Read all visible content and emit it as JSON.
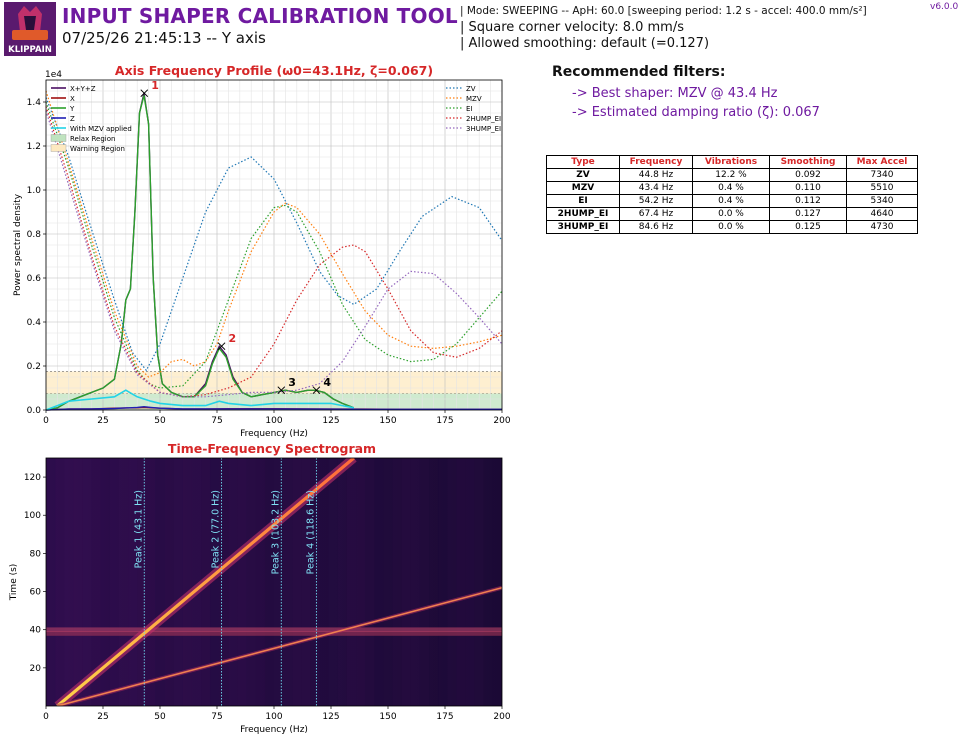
{
  "header": {
    "title": "INPUT SHAPER CALIBRATION TOOL",
    "subtitle": "07/25/26 21:45:13 -- Y axis",
    "logo_text": "KLIPPAIN",
    "version": "v6.0.0",
    "mode_line": "| Mode: SWEEPING -- ApH: 60.0 [sweeping period: 1.2 s - accel: 400.0 mm/s²]",
    "scv_line": "| Square corner velocity: 8.0 mm/s",
    "smoothing_line": "| Allowed smoothing: default (=0.127)"
  },
  "recommendations": {
    "title": "Recommended filters:",
    "best": "-> Best shaper: MZV @ 43.4 Hz",
    "damping": "-> Estimated damping ratio (ζ): 0.067"
  },
  "filters_table": {
    "headers": [
      "Type",
      "Frequency",
      "Vibrations",
      "Smoothing",
      "Max Accel"
    ],
    "rows": [
      [
        "ZV",
        "44.8 Hz",
        "12.2 %",
        "0.092",
        "7340"
      ],
      [
        "MZV",
        "43.4 Hz",
        "0.4 %",
        "0.110",
        "5510"
      ],
      [
        "EI",
        "54.2 Hz",
        "0.4 %",
        "0.112",
        "5340"
      ],
      [
        "2HUMP_EI",
        "67.4 Hz",
        "0.0 %",
        "0.127",
        "4640"
      ],
      [
        "3HUMP_EI",
        "84.6 Hz",
        "0.0 %",
        "0.125",
        "4730"
      ]
    ]
  },
  "chart_data": [
    {
      "type": "line",
      "title": "Axis Frequency Profile (ω0=43.1Hz, ζ=0.067)",
      "xlabel": "Frequency (Hz)",
      "ylabel": "Power spectral density",
      "y_multiplier": "1e4",
      "xlim": [
        0,
        200
      ],
      "ylim": [
        0,
        1.5
      ],
      "xticks": [
        0,
        25,
        50,
        75,
        100,
        125,
        150,
        175,
        200
      ],
      "yticks": [
        0.0,
        0.2,
        0.4,
        0.6,
        0.8,
        1.0,
        1.2,
        1.4
      ],
      "ytick_labels": [
        "0.0",
        "0.2",
        "0.4",
        "0.6",
        "0.8",
        "1.0",
        "1.2",
        "1.4"
      ],
      "grid": true,
      "regions": [
        {
          "name": "Relax Region",
          "from": 0,
          "to": 0.075,
          "color": "#bfe3bf"
        },
        {
          "name": "Warning Region",
          "from": 0.075,
          "to": 0.175,
          "color": "#fde9c0"
        }
      ],
      "series": [
        {
          "name": "X+Y+Z",
          "color": "#4b0f63",
          "x": [
            0,
            5,
            10,
            15,
            20,
            25,
            30,
            33,
            35,
            37,
            39,
            41,
            43,
            45,
            47,
            49,
            51,
            55,
            60,
            65,
            70,
            73,
            76,
            79,
            82,
            86,
            90,
            95,
            100,
            105,
            110,
            115,
            118,
            122,
            126,
            130,
            135
          ],
          "y": [
            0.0,
            0.01,
            0.04,
            0.06,
            0.08,
            0.1,
            0.14,
            0.3,
            0.5,
            0.55,
            0.9,
            1.35,
            1.44,
            1.3,
            0.6,
            0.25,
            0.12,
            0.08,
            0.06,
            0.06,
            0.12,
            0.22,
            0.29,
            0.25,
            0.15,
            0.08,
            0.06,
            0.07,
            0.08,
            0.09,
            0.08,
            0.09,
            0.09,
            0.08,
            0.05,
            0.03,
            0.01
          ]
        },
        {
          "name": "X",
          "color": "#a01010",
          "x": [
            0,
            10,
            20,
            30,
            40,
            43,
            46,
            50,
            60,
            70,
            80,
            100,
            120,
            140,
            160,
            180,
            200
          ],
          "y": [
            0.0,
            0.005,
            0.005,
            0.008,
            0.01,
            0.012,
            0.01,
            0.008,
            0.005,
            0.005,
            0.006,
            0.006,
            0.005,
            0.004,
            0.003,
            0.003,
            0.003
          ]
        },
        {
          "name": "Y",
          "color": "#2ca02c",
          "x": [
            0,
            5,
            10,
            15,
            20,
            25,
            30,
            33,
            35,
            37,
            39,
            41,
            43,
            45,
            47,
            49,
            51,
            55,
            60,
            65,
            70,
            73,
            76,
            79,
            82,
            86,
            90,
            95,
            100,
            105,
            110,
            115,
            118,
            122,
            126,
            130,
            135
          ],
          "y": [
            0.0,
            0.01,
            0.04,
            0.06,
            0.08,
            0.1,
            0.14,
            0.3,
            0.5,
            0.55,
            0.9,
            1.35,
            1.43,
            1.3,
            0.6,
            0.25,
            0.12,
            0.08,
            0.06,
            0.06,
            0.11,
            0.21,
            0.28,
            0.24,
            0.14,
            0.08,
            0.06,
            0.07,
            0.08,
            0.09,
            0.08,
            0.09,
            0.09,
            0.08,
            0.05,
            0.03,
            0.01
          ]
        },
        {
          "name": "Z",
          "color": "#1f1fb4",
          "x": [
            0,
            10,
            20,
            30,
            40,
            43,
            46,
            50,
            60,
            70,
            80,
            100,
            120,
            140,
            160,
            180,
            200
          ],
          "y": [
            0.0,
            0.004,
            0.005,
            0.007,
            0.012,
            0.015,
            0.012,
            0.008,
            0.005,
            0.005,
            0.005,
            0.005,
            0.004,
            0.003,
            0.003,
            0.003,
            0.003
          ]
        },
        {
          "name": "With MZV applied",
          "color": "#22d3e6",
          "x": [
            0,
            5,
            10,
            20,
            30,
            35,
            40,
            43,
            46,
            50,
            60,
            70,
            76,
            80,
            90,
            100,
            110,
            118,
            125,
            130,
            135
          ],
          "y": [
            0.0,
            0.02,
            0.04,
            0.05,
            0.06,
            0.09,
            0.06,
            0.05,
            0.04,
            0.03,
            0.02,
            0.02,
            0.04,
            0.03,
            0.02,
            0.03,
            0.03,
            0.03,
            0.03,
            0.02,
            0.01
          ]
        },
        {
          "name": "ZV",
          "color": "#1f77b4",
          "dotted": true,
          "x": [
            0,
            10,
            20,
            30,
            38,
            44,
            50,
            60,
            70,
            80,
            90,
            100,
            110,
            120,
            128,
            135,
            145,
            155,
            165,
            178,
            190,
            200
          ],
          "y": [
            1.42,
            1.15,
            0.82,
            0.5,
            0.26,
            0.18,
            0.3,
            0.6,
            0.9,
            1.1,
            1.15,
            1.05,
            0.85,
            0.63,
            0.52,
            0.48,
            0.55,
            0.72,
            0.88,
            0.97,
            0.92,
            0.77
          ]
        },
        {
          "name": "MZV",
          "color": "#ff7f0e",
          "dotted": true,
          "x": [
            0,
            10,
            20,
            30,
            40,
            45,
            50,
            55,
            60,
            65,
            70,
            75,
            80,
            90,
            100,
            105,
            110,
            120,
            130,
            140,
            150,
            160,
            170,
            180,
            190,
            200
          ],
          "y": [
            1.45,
            1.12,
            0.78,
            0.45,
            0.2,
            0.15,
            0.17,
            0.22,
            0.23,
            0.2,
            0.22,
            0.3,
            0.45,
            0.72,
            0.9,
            0.94,
            0.92,
            0.8,
            0.62,
            0.45,
            0.34,
            0.29,
            0.28,
            0.29,
            0.31,
            0.34
          ]
        },
        {
          "name": "EI",
          "color": "#2ca02c",
          "dotted": true,
          "x": [
            0,
            10,
            20,
            30,
            40,
            45,
            50,
            60,
            70,
            80,
            90,
            100,
            105,
            110,
            120,
            130,
            140,
            150,
            160,
            170,
            180,
            190,
            200
          ],
          "y": [
            1.4,
            1.1,
            0.75,
            0.42,
            0.18,
            0.12,
            0.1,
            0.11,
            0.22,
            0.5,
            0.78,
            0.92,
            0.93,
            0.9,
            0.72,
            0.48,
            0.32,
            0.25,
            0.22,
            0.23,
            0.3,
            0.42,
            0.54
          ]
        },
        {
          "name": "2HUMP_EI",
          "color": "#d62728",
          "dotted": true,
          "x": [
            0,
            10,
            20,
            30,
            40,
            50,
            60,
            70,
            80,
            90,
            100,
            110,
            120,
            130,
            135,
            140,
            150,
            160,
            170,
            180,
            190,
            200
          ],
          "y": [
            1.38,
            1.05,
            0.7,
            0.38,
            0.17,
            0.08,
            0.06,
            0.07,
            0.1,
            0.15,
            0.3,
            0.5,
            0.66,
            0.74,
            0.75,
            0.72,
            0.55,
            0.36,
            0.26,
            0.24,
            0.28,
            0.36
          ]
        },
        {
          "name": "3HUMP_EI",
          "color": "#9467bd",
          "dotted": true,
          "x": [
            0,
            10,
            20,
            30,
            40,
            50,
            60,
            70,
            80,
            90,
            100,
            110,
            120,
            130,
            140,
            150,
            160,
            170,
            180,
            190,
            200
          ],
          "y": [
            1.36,
            1.02,
            0.68,
            0.36,
            0.16,
            0.08,
            0.06,
            0.06,
            0.07,
            0.08,
            0.08,
            0.09,
            0.12,
            0.22,
            0.38,
            0.55,
            0.63,
            0.62,
            0.53,
            0.42,
            0.3
          ]
        }
      ],
      "peaks": [
        {
          "label": "1",
          "x": 43.1,
          "y": 1.44,
          "color": "#d62728"
        },
        {
          "label": "2",
          "x": 77.0,
          "y": 0.29,
          "color": "#d62728"
        },
        {
          "label": "3",
          "x": 103.2,
          "y": 0.09,
          "color": "#000000"
        },
        {
          "label": "4",
          "x": 118.6,
          "y": 0.09,
          "color": "#000000"
        }
      ],
      "legend_position": "top-left"
    },
    {
      "type": "heatmap",
      "title": "Time-Frequency Spectrogram",
      "xlabel": "Frequency (Hz)",
      "ylabel": "Time (s)",
      "xlim": [
        0,
        200
      ],
      "ylim": [
        0,
        130
      ],
      "xticks": [
        0,
        25,
        50,
        75,
        100,
        125,
        150,
        175,
        200
      ],
      "yticks": [
        20,
        40,
        60,
        80,
        100,
        120
      ],
      "sweep_lines": [
        {
          "from": [
            5,
            0
          ],
          "to": [
            135,
            130
          ]
        },
        {
          "from": [
            5,
            0
          ],
          "to": [
            200,
            62
          ]
        }
      ],
      "bands": [
        38,
        40
      ],
      "peak_lines": [
        {
          "label": "Peak 1 (43.1 Hz)",
          "x": 43.1
        },
        {
          "label": "Peak 2 (77.0 Hz)",
          "x": 77.0
        },
        {
          "label": "Peak 3 (103.2 Hz)",
          "x": 103.2
        },
        {
          "label": "Peak 4 (118.6 Hz)",
          "x": 118.6
        }
      ]
    }
  ]
}
